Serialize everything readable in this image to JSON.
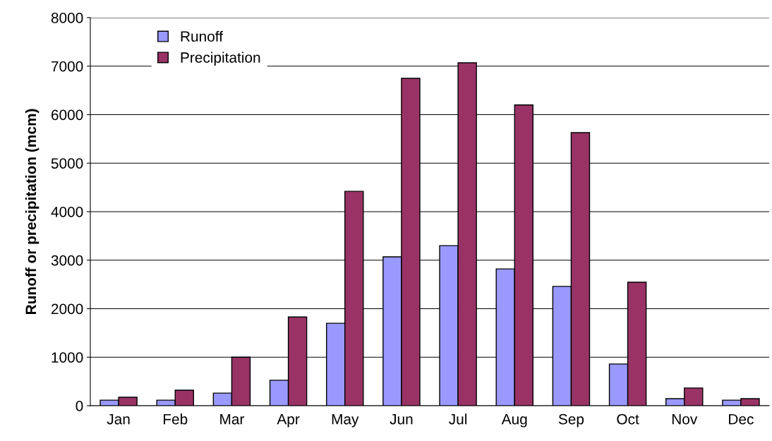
{
  "chart_data": {
    "type": "bar",
    "ylabel": "Runoff or precipitation (mcm)",
    "categories": [
      "Jan",
      "Feb",
      "Mar",
      "Apr",
      "May",
      "Jun",
      "Jul",
      "Aug",
      "Sep",
      "Oct",
      "Nov",
      "Dec"
    ],
    "series": [
      {
        "name": "Runoff",
        "color": "#9999ff",
        "values": [
          115,
          115,
          260,
          525,
          1700,
          3070,
          3300,
          2820,
          2460,
          860,
          145,
          115
        ]
      },
      {
        "name": "Precipitation",
        "color": "#993366",
        "values": [
          175,
          320,
          1000,
          1830,
          4420,
          6750,
          7070,
          6200,
          5630,
          2545,
          365,
          145
        ]
      }
    ],
    "ylim": [
      0,
      8000
    ],
    "yticks": [
      0,
      1000,
      2000,
      3000,
      4000,
      5000,
      6000,
      7000,
      8000
    ],
    "grid": "y",
    "legend": "top left"
  }
}
